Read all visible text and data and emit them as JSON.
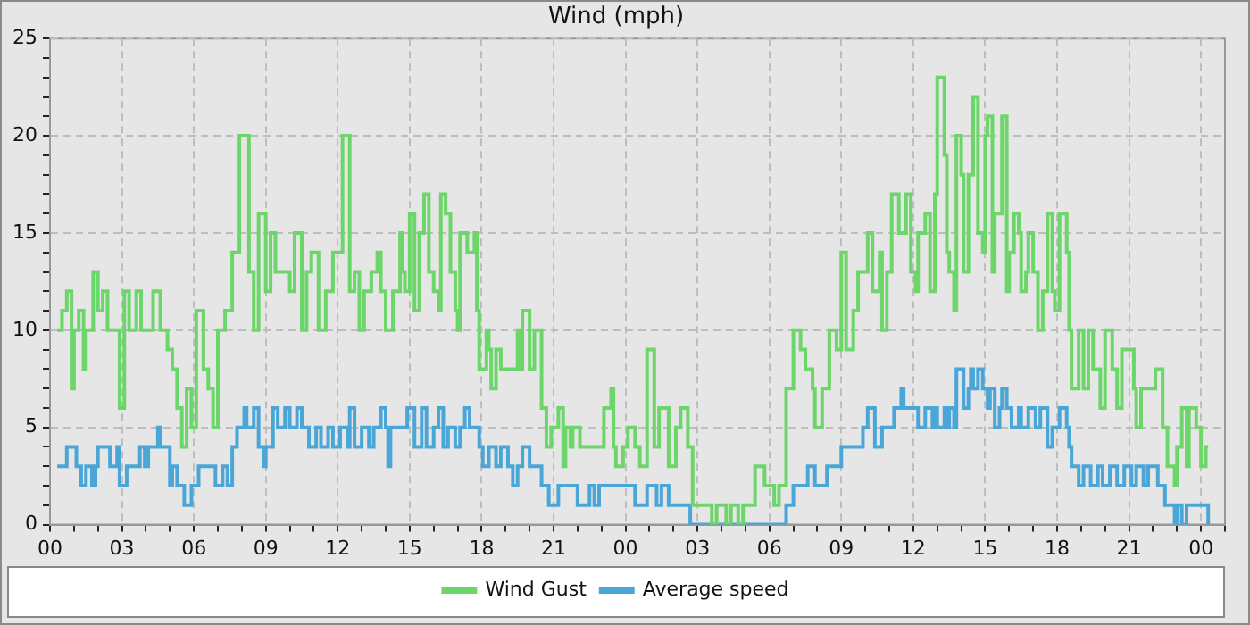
{
  "chart_data": {
    "type": "step",
    "title": "Wind (mph)",
    "xlim": [
      0,
      49
    ],
    "xticks": [
      {
        "value": 0,
        "label": "00"
      },
      {
        "value": 1,
        "label": null
      },
      {
        "value": 2,
        "label": null
      },
      {
        "value": 3,
        "label": "03"
      },
      {
        "value": 4,
        "label": null
      },
      {
        "value": 5,
        "label": null
      },
      {
        "value": 6,
        "label": "06"
      },
      {
        "value": 7,
        "label": null
      },
      {
        "value": 8,
        "label": null
      },
      {
        "value": 9,
        "label": "09"
      },
      {
        "value": 10,
        "label": null
      },
      {
        "value": 11,
        "label": null
      },
      {
        "value": 12,
        "label": "12"
      },
      {
        "value": 13,
        "label": null
      },
      {
        "value": 14,
        "label": null
      },
      {
        "value": 15,
        "label": "15"
      },
      {
        "value": 16,
        "label": null
      },
      {
        "value": 17,
        "label": null
      },
      {
        "value": 18,
        "label": "18"
      },
      {
        "value": 19,
        "label": null
      },
      {
        "value": 20,
        "label": null
      },
      {
        "value": 21,
        "label": "21"
      },
      {
        "value": 22,
        "label": null
      },
      {
        "value": 23,
        "label": null
      },
      {
        "value": 24,
        "label": "00"
      },
      {
        "value": 25,
        "label": null
      },
      {
        "value": 26,
        "label": null
      },
      {
        "value": 27,
        "label": "03"
      },
      {
        "value": 28,
        "label": null
      },
      {
        "value": 29,
        "label": null
      },
      {
        "value": 30,
        "label": "06"
      },
      {
        "value": 31,
        "label": null
      },
      {
        "value": 32,
        "label": null
      },
      {
        "value": 33,
        "label": "09"
      },
      {
        "value": 34,
        "label": null
      },
      {
        "value": 35,
        "label": null
      },
      {
        "value": 36,
        "label": "12"
      },
      {
        "value": 37,
        "label": null
      },
      {
        "value": 38,
        "label": null
      },
      {
        "value": 39,
        "label": "15"
      },
      {
        "value": 40,
        "label": null
      },
      {
        "value": 41,
        "label": null
      },
      {
        "value": 42,
        "label": "18"
      },
      {
        "value": 43,
        "label": null
      },
      {
        "value": 44,
        "label": null
      },
      {
        "value": 45,
        "label": "21"
      },
      {
        "value": 46,
        "label": null
      },
      {
        "value": 47,
        "label": null
      },
      {
        "value": 48,
        "label": "00"
      },
      {
        "value": 49,
        "label": null
      }
    ],
    "ylim": [
      0,
      25
    ],
    "yticks": [
      0,
      {
        "value": 1,
        "label": null
      },
      {
        "value": 2,
        "label": null
      },
      {
        "value": 3,
        "label": null
      },
      {
        "value": 4,
        "label": null
      },
      5,
      {
        "value": 6,
        "label": null
      },
      {
        "value": 7,
        "label": null
      },
      {
        "value": 8,
        "label": null
      },
      {
        "value": 9,
        "label": null
      },
      10,
      {
        "value": 11,
        "label": null
      },
      {
        "value": 12,
        "label": null
      },
      {
        "value": 13,
        "label": null
      },
      {
        "value": 14,
        "label": null
      },
      15,
      {
        "value": 16,
        "label": null
      },
      {
        "value": 17,
        "label": null
      },
      {
        "value": 18,
        "label": null
      },
      {
        "value": 19,
        "label": null
      },
      20,
      {
        "value": 21,
        "label": null
      },
      {
        "value": 22,
        "label": null
      },
      {
        "value": 23,
        "label": null
      },
      {
        "value": 24,
        "label": null
      },
      25
    ],
    "grid": true,
    "legend": "bottom",
    "series": [
      {
        "name": "Wind Gust",
        "color": "#6dd66a",
        "x": [
          0.3,
          0.5,
          0.7,
          0.9,
          1.0,
          1.2,
          1.4,
          1.5,
          1.8,
          2.0,
          2.2,
          2.4,
          2.9,
          3.1,
          3.3,
          3.6,
          3.8,
          4.3,
          4.6,
          4.9,
          5.1,
          5.3,
          5.5,
          5.7,
          5.9,
          6.1,
          6.4,
          6.6,
          6.8,
          7.0,
          7.3,
          7.6,
          7.9,
          8.3,
          8.5,
          8.7,
          9.0,
          9.2,
          9.4,
          10.0,
          10.2,
          10.5,
          10.7,
          10.9,
          11.2,
          11.5,
          11.8,
          12.2,
          12.5,
          12.7,
          12.9,
          13.1,
          13.4,
          13.65,
          13.8,
          14.0,
          14.3,
          14.6,
          14.7,
          14.8,
          15.0,
          15.2,
          15.4,
          15.6,
          15.8,
          16.0,
          16.2,
          16.3,
          16.5,
          16.7,
          16.9,
          17.0,
          17.1,
          17.4,
          17.7,
          17.8,
          17.9,
          18.2,
          18.3,
          18.4,
          18.6,
          18.8,
          19.5,
          19.6,
          19.7,
          20.0,
          20.2,
          20.5,
          20.7,
          20.9,
          21.2,
          21.4,
          21.5,
          21.7,
          21.8,
          22.1,
          23.1,
          23.4,
          23.5,
          23.6,
          23.9,
          24.1,
          24.4,
          24.6,
          24.9,
          25.2,
          25.4,
          25.8,
          26.1,
          26.3,
          26.6,
          26.8,
          27.6,
          27.8,
          28.2,
          28.4,
          28.7,
          28.9,
          29.4,
          29.8,
          30.2,
          30.4,
          30.7,
          31.0,
          31.3,
          31.5,
          31.8,
          31.9,
          32.2,
          32.5,
          32.8,
          33.0,
          33.2,
          33.5,
          33.7,
          34.1,
          34.3,
          34.6,
          34.7,
          34.9,
          35.1,
          35.4,
          35.7,
          35.9,
          36.1,
          36.2,
          36.5,
          36.7,
          36.9,
          37.0,
          37.3,
          37.4,
          37.5,
          37.7,
          37.8,
          38.0,
          38.1,
          38.3,
          38.5,
          38.7,
          38.9,
          39.0,
          39.1,
          39.3,
          39.4,
          39.7,
          39.9,
          40.0,
          40.2,
          40.4,
          40.5,
          40.7,
          40.8,
          41.0,
          41.2,
          41.4,
          41.6,
          41.8,
          41.9,
          42.1,
          42.4,
          42.5,
          42.6,
          42.9,
          43.1,
          43.3,
          43.5,
          43.8,
          44.0,
          44.3,
          44.5,
          44.7,
          45.2,
          45.3,
          45.5,
          46.1,
          46.4,
          46.6,
          46.9,
          47.0,
          47.2,
          47.4,
          47.5,
          47.8,
          48.0,
          48.2,
          48.3
        ],
        "values": [
          10,
          11,
          12,
          7,
          10,
          11,
          8,
          10,
          13,
          11,
          12,
          10,
          6,
          12,
          10,
          12,
          10,
          12,
          10,
          9,
          8,
          6,
          4,
          7,
          5,
          11,
          8,
          7,
          5,
          10,
          11,
          14,
          20,
          13,
          10,
          16,
          12,
          15,
          13,
          12,
          15,
          10,
          13,
          14,
          10,
          12,
          14,
          20,
          12,
          13,
          10,
          12,
          13,
          14,
          12,
          10,
          12,
          15,
          13,
          12,
          16,
          11,
          15,
          17,
          13,
          12,
          11,
          17,
          16,
          13,
          11,
          10,
          15,
          14,
          15,
          11,
          8,
          10,
          9,
          7,
          9,
          8,
          10,
          8,
          11,
          8,
          10,
          6,
          4,
          5,
          6,
          3,
          5,
          4,
          5,
          4,
          6,
          7,
          4,
          3,
          4,
          5,
          4,
          3,
          9,
          4,
          6,
          3,
          5,
          6,
          4,
          1,
          0,
          1,
          0,
          1,
          0,
          1,
          3,
          2,
          1,
          2,
          7,
          10,
          9,
          8,
          7,
          5,
          7,
          10,
          9,
          14,
          9,
          11,
          13,
          15,
          12,
          14,
          10,
          13,
          17,
          15,
          17,
          13,
          12,
          15,
          16,
          12,
          17,
          23,
          19,
          14,
          13,
          11,
          20,
          18,
          13,
          18,
          22,
          15,
          14,
          20,
          21,
          13,
          16,
          21,
          12,
          14,
          16,
          15,
          12,
          13,
          15,
          13,
          10,
          12,
          16,
          12,
          11,
          16,
          14,
          10,
          7,
          10,
          7,
          10,
          8,
          6,
          10,
          8,
          6,
          9,
          7,
          5,
          7,
          8,
          5,
          3,
          2,
          4,
          6,
          3,
          6,
          5,
          3,
          4,
          4
        ]
      },
      {
        "name": "Average speed",
        "color": "#4ba6d8",
        "x": [
          0.3,
          0.7,
          1.1,
          1.3,
          1.5,
          1.75,
          1.9,
          2.0,
          2.5,
          2.8,
          2.9,
          3.2,
          3.75,
          3.95,
          4.1,
          4.5,
          4.6,
          5.0,
          5.1,
          5.3,
          5.6,
          5.9,
          6.2,
          6.9,
          7.2,
          7.4,
          7.6,
          7.8,
          8.1,
          8.2,
          8.5,
          8.7,
          8.9,
          9.0,
          9.3,
          9.5,
          9.8,
          10.0,
          10.3,
          10.5,
          10.8,
          11.1,
          11.3,
          11.6,
          11.8,
          12.1,
          12.4,
          12.5,
          12.7,
          13.0,
          13.3,
          13.5,
          13.8,
          14.0,
          14.1,
          14.2,
          14.9,
          15.2,
          15.5,
          15.7,
          16.0,
          16.2,
          16.4,
          16.6,
          16.9,
          17.1,
          17.3,
          17.5,
          17.9,
          18.05,
          18.3,
          18.6,
          18.8,
          19.1,
          19.3,
          19.5,
          19.7,
          20.0,
          20.5,
          20.8,
          21.2,
          22.0,
          22.5,
          22.7,
          22.9,
          24.4,
          24.9,
          25.3,
          25.5,
          25.8,
          26.7,
          30.7,
          31.0,
          31.6,
          31.9,
          32.4,
          33.0,
          33.9,
          34.1,
          34.4,
          34.7,
          35.2,
          35.5,
          35.6,
          36.2,
          36.5,
          36.8,
          36.9,
          37.0,
          37.3,
          37.4,
          37.5,
          37.7,
          37.8,
          38.1,
          38.3,
          38.4,
          38.5,
          38.7,
          38.9,
          39.1,
          39.2,
          39.4,
          39.6,
          39.7,
          39.9,
          40.1,
          40.4,
          40.5,
          40.8,
          41.1,
          41.3,
          41.6,
          41.8,
          42.1,
          42.4,
          42.5,
          42.6,
          42.9,
          43.1,
          43.4,
          43.7,
          43.9,
          44.2,
          44.5,
          44.8,
          45.1,
          45.3,
          45.6,
          45.8,
          46.2,
          46.5,
          46.9,
          47.0,
          47.2,
          47.4,
          48.2,
          48.3
        ],
        "values": [
          3,
          4,
          3,
          2,
          3,
          2,
          3,
          4,
          3,
          4,
          2,
          3,
          4,
          3,
          4,
          5,
          4,
          2,
          3,
          2,
          1,
          2,
          3,
          2,
          3,
          2,
          4,
          5,
          6,
          5,
          6,
          4,
          3,
          4,
          6,
          5,
          6,
          5,
          6,
          5,
          4,
          5,
          4,
          5,
          4,
          5,
          4,
          6,
          4,
          5,
          4,
          5,
          6,
          5,
          3,
          5,
          6,
          4,
          6,
          4,
          5,
          6,
          4,
          5,
          4,
          5,
          6,
          5,
          4,
          3,
          4,
          3,
          4,
          3,
          2,
          3,
          4,
          3,
          2,
          1,
          2,
          1,
          2,
          1,
          2,
          1,
          2,
          1,
          2,
          1,
          0,
          1,
          2,
          3,
          2,
          3,
          4,
          5,
          6,
          4,
          5,
          6,
          7,
          6,
          5,
          6,
          5,
          6,
          5,
          6,
          5,
          6,
          5,
          8,
          6,
          7,
          8,
          7,
          8,
          7,
          6,
          7,
          5,
          6,
          7,
          6,
          5,
          6,
          5,
          6,
          5,
          6,
          4,
          5,
          6,
          5,
          4,
          3,
          2,
          3,
          2,
          3,
          2,
          3,
          2,
          3,
          2,
          3,
          2,
          3,
          2,
          1,
          0,
          1,
          0,
          1,
          1,
          0
        ]
      }
    ]
  }
}
